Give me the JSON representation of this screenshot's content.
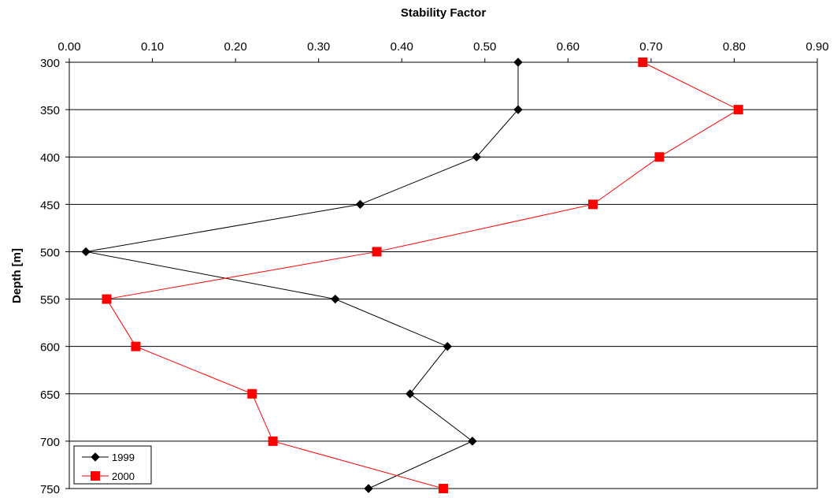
{
  "chart_data": {
    "type": "line",
    "xlabel": "Stability Factor",
    "ylabel": "Depth [m]",
    "xlim": [
      0,
      0.9
    ],
    "ylim": [
      300,
      750
    ],
    "x_axis_position": "top",
    "y_axis_inverted": true,
    "x_ticks": [
      "0.00",
      "0.10",
      "0.20",
      "0.30",
      "0.40",
      "0.50",
      "0.60",
      "0.70",
      "0.80",
      "0.90"
    ],
    "y_ticks": [
      "300",
      "350",
      "400",
      "450",
      "500",
      "550",
      "600",
      "650",
      "700",
      "750"
    ],
    "grid": "horizontal",
    "legend_position": "bottom-left",
    "series": [
      {
        "name": "1999",
        "color": "#000000",
        "marker": "diamond",
        "points": [
          {
            "depth": 300,
            "value": 0.54
          },
          {
            "depth": 350,
            "value": 0.54
          },
          {
            "depth": 400,
            "value": 0.49
          },
          {
            "depth": 450,
            "value": 0.35
          },
          {
            "depth": 500,
            "value": 0.02
          },
          {
            "depth": 550,
            "value": 0.32
          },
          {
            "depth": 600,
            "value": 0.455
          },
          {
            "depth": 650,
            "value": 0.41
          },
          {
            "depth": 700,
            "value": 0.485
          },
          {
            "depth": 750,
            "value": 0.36
          }
        ]
      },
      {
        "name": "2000",
        "color": "#ff0000",
        "marker": "square",
        "points": [
          {
            "depth": 300,
            "value": 0.69
          },
          {
            "depth": 350,
            "value": 0.805
          },
          {
            "depth": 400,
            "value": 0.71
          },
          {
            "depth": 450,
            "value": 0.63
          },
          {
            "depth": 500,
            "value": 0.37
          },
          {
            "depth": 550,
            "value": 0.045
          },
          {
            "depth": 600,
            "value": 0.08
          },
          {
            "depth": 650,
            "value": 0.22
          },
          {
            "depth": 700,
            "value": 0.245
          },
          {
            "depth": 750,
            "value": 0.45
          }
        ]
      }
    ]
  }
}
